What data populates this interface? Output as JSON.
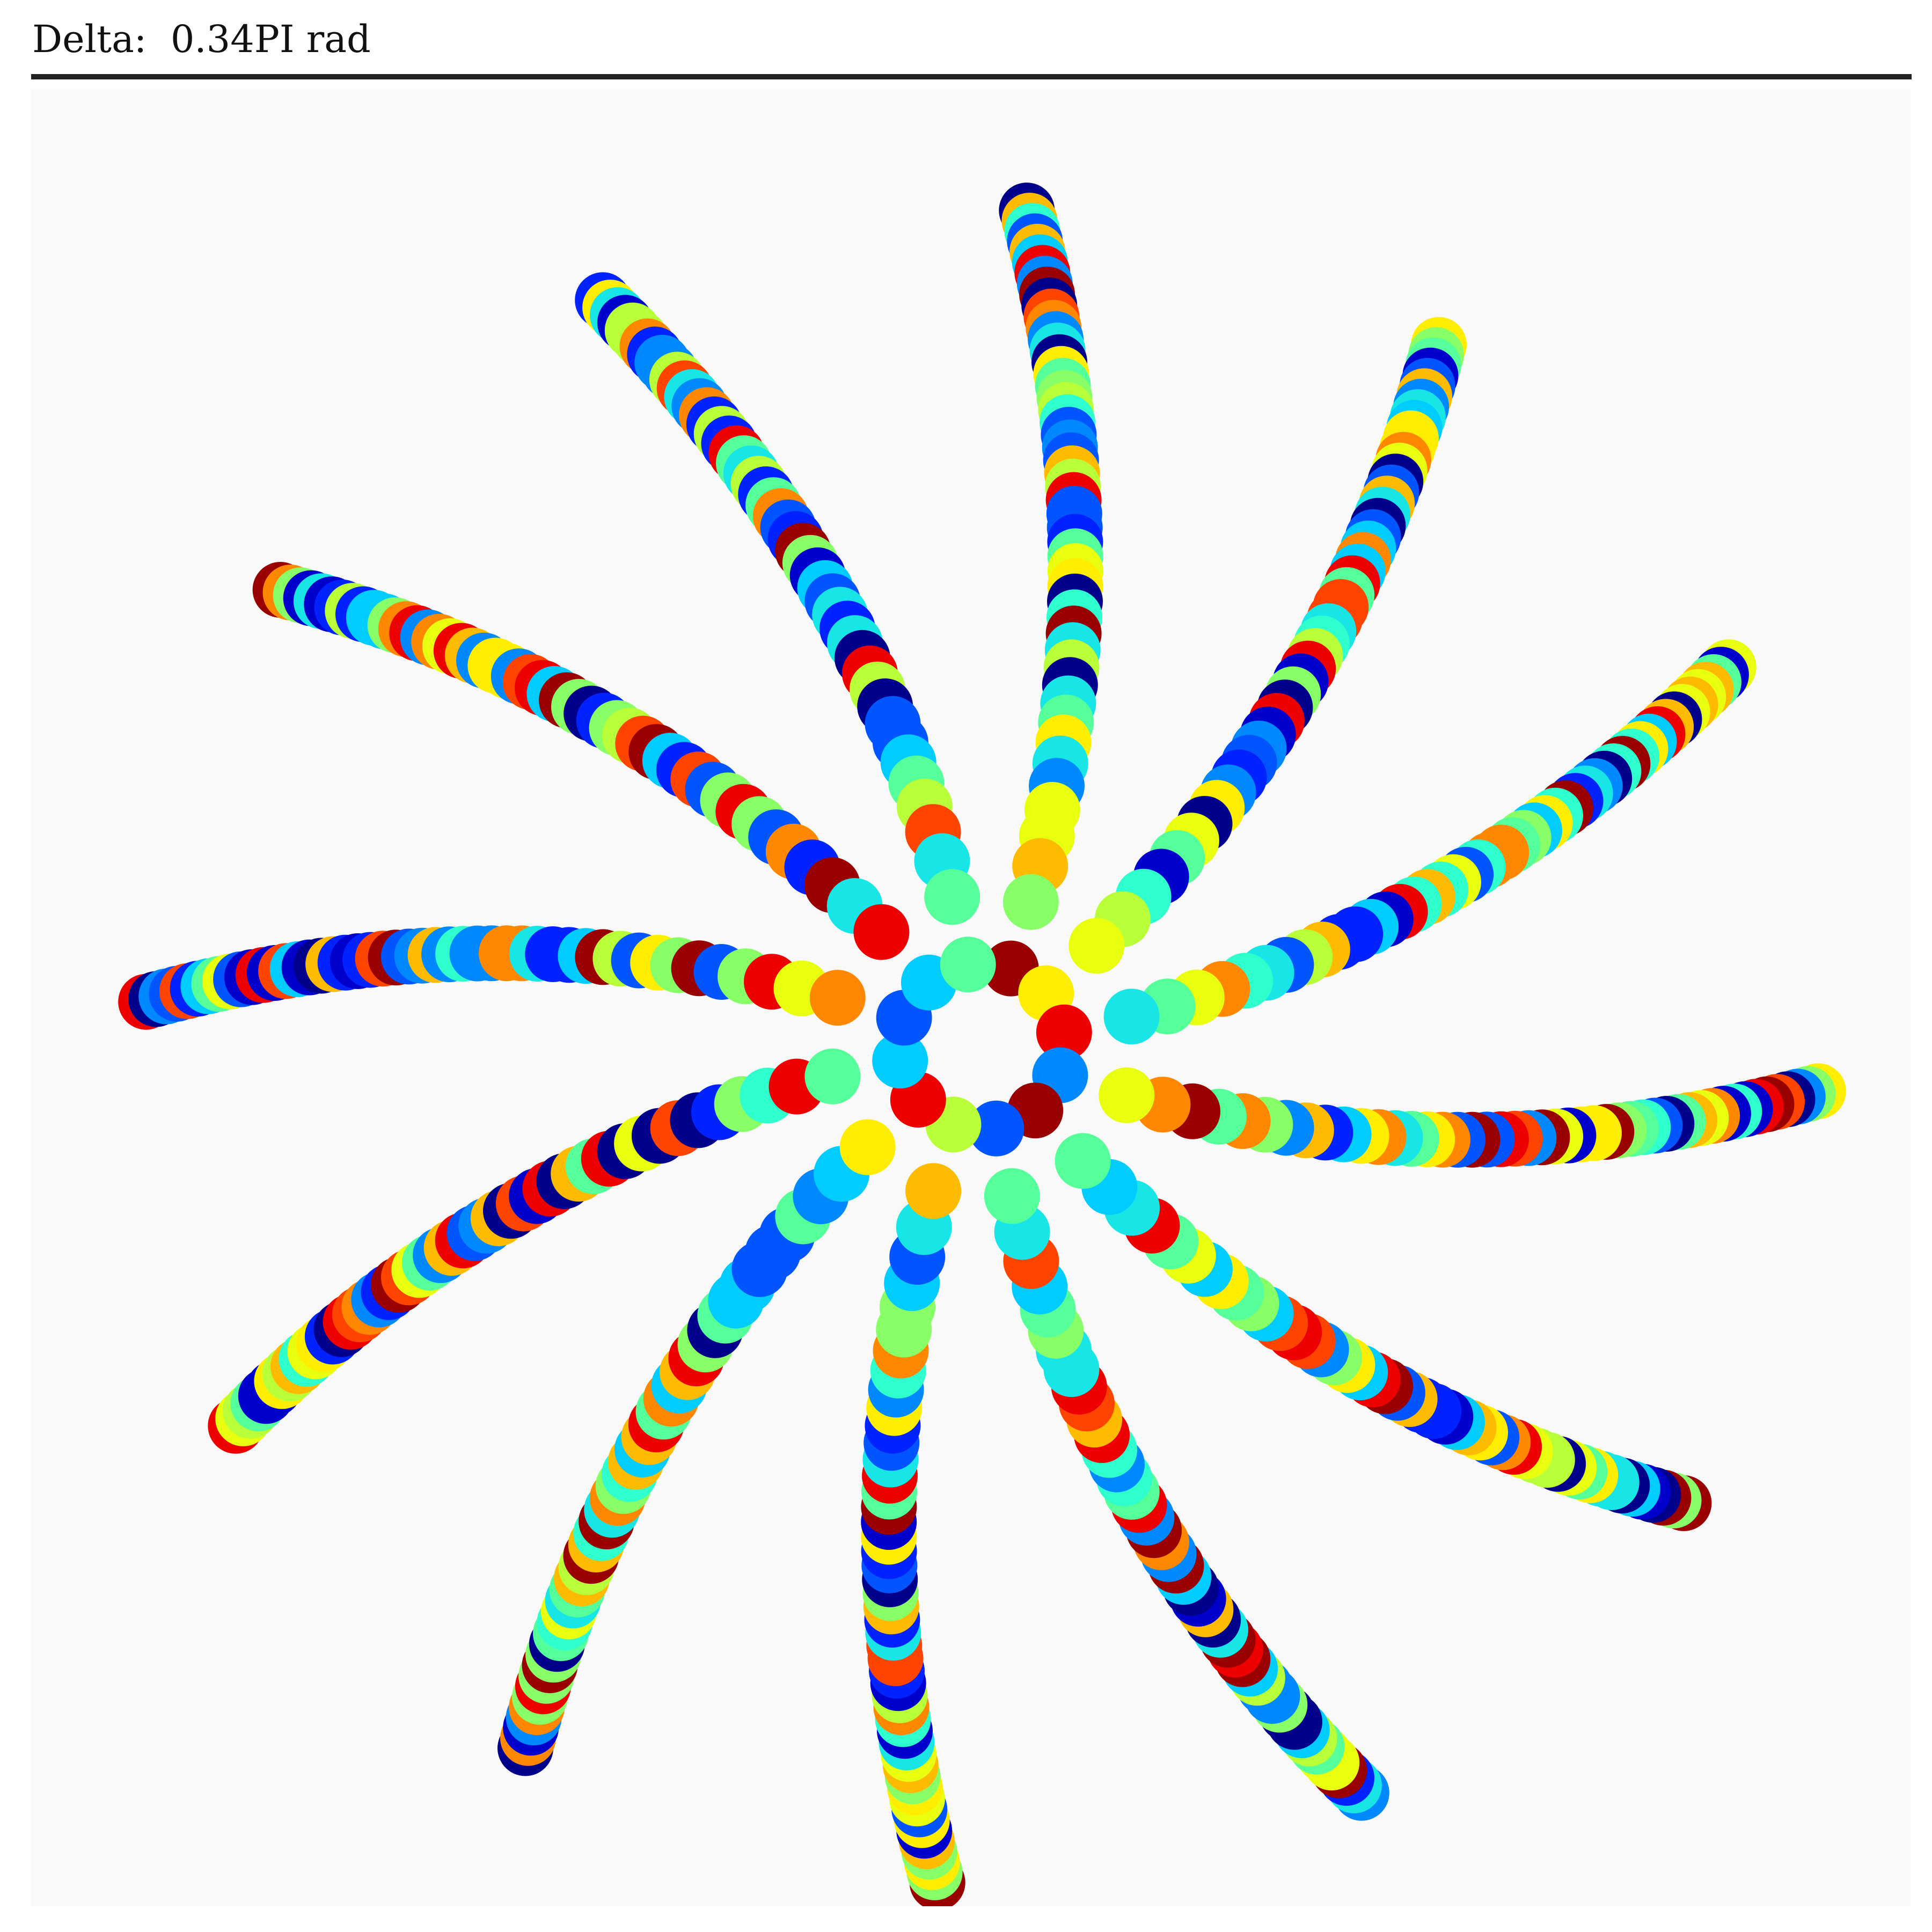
{
  "header": {
    "title": "Delta:  0.34PI rad"
  },
  "artwork": {
    "type": "spiral-dot-pattern",
    "arms": 12,
    "dots_per_arm": 48,
    "delta_pi_rad": 0.34,
    "panel_background": "#f9f9f9",
    "rule_color": "#222222",
    "palette": [
      "#00008b",
      "#0000cd",
      "#0022ff",
      "#0055ff",
      "#0088ff",
      "#00ccff",
      "#18e6e6",
      "#2effcc",
      "#55ff99",
      "#88ff66",
      "#b8ff3a",
      "#e8ff10",
      "#ffee00",
      "#ffbb00",
      "#ff8800",
      "#ff4400",
      "#ee0000",
      "#990000"
    ]
  }
}
